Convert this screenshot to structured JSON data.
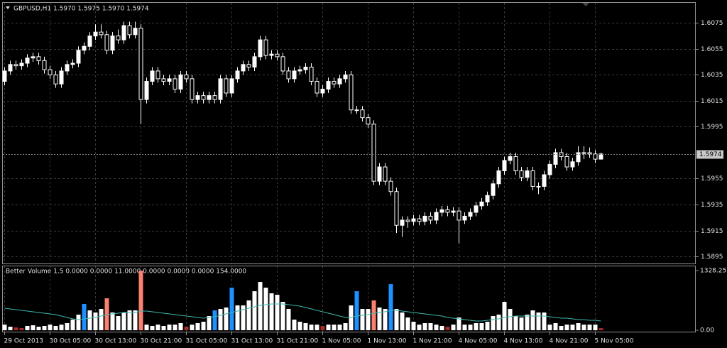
{
  "chart_data": [
    {
      "type": "candlestick",
      "title": "GBPUSD,H1  1.5970 1.5975 1.5970 1.5974",
      "ylim": [
        1.5889,
        1.609
      ],
      "yticks": [
        1.6075,
        1.6055,
        1.6035,
        1.6015,
        1.5995,
        1.5955,
        1.5935,
        1.5915,
        1.5895
      ],
      "grid": true,
      "current_price": 1.5974,
      "up_color": "#ffffff",
      "down_color": "#000000",
      "wick_color": "#ffffff",
      "ohlc": [
        [
          1.603,
          1.6041,
          1.6027,
          1.6038
        ],
        [
          1.6038,
          1.6046,
          1.6035,
          1.6043
        ],
        [
          1.6043,
          1.6046,
          1.6039,
          1.6042
        ],
        [
          1.6042,
          1.6047,
          1.6039,
          1.6044
        ],
        [
          1.6044,
          1.6051,
          1.6041,
          1.6048
        ],
        [
          1.6048,
          1.6052,
          1.6045,
          1.6049
        ],
        [
          1.6049,
          1.6052,
          1.6043,
          1.6046
        ],
        [
          1.6046,
          1.6049,
          1.6036,
          1.6039
        ],
        [
          1.6039,
          1.6042,
          1.6032,
          1.6035
        ],
        [
          1.6035,
          1.6038,
          1.6025,
          1.6028
        ],
        [
          1.6028,
          1.6041,
          1.6025,
          1.6038
        ],
        [
          1.6038,
          1.6046,
          1.6035,
          1.6043
        ],
        [
          1.6043,
          1.6047,
          1.604,
          1.6044
        ],
        [
          1.6044,
          1.6057,
          1.6041,
          1.6054
        ],
        [
          1.6054,
          1.606,
          1.6051,
          1.6057
        ],
        [
          1.6057,
          1.6068,
          1.6054,
          1.6065
        ],
        [
          1.6065,
          1.6074,
          1.6062,
          1.6068
        ],
        [
          1.6068,
          1.6074,
          1.6063,
          1.6066
        ],
        [
          1.6066,
          1.6069,
          1.6051,
          1.6054
        ],
        [
          1.6054,
          1.6068,
          1.6051,
          1.6065
        ],
        [
          1.6065,
          1.607,
          1.6059,
          1.6062
        ],
        [
          1.6062,
          1.6076,
          1.6059,
          1.6073
        ],
        [
          1.6073,
          1.6076,
          1.6063,
          1.6066
        ],
        [
          1.6066,
          1.6076,
          1.6063,
          1.6071
        ],
        [
          1.6071,
          1.6074,
          1.5997,
          1.6016
        ],
        [
          1.6016,
          1.6033,
          1.6013,
          1.603
        ],
        [
          1.603,
          1.6041,
          1.6027,
          1.6038
        ],
        [
          1.6038,
          1.6041,
          1.6029,
          1.6032
        ],
        [
          1.6032,
          1.6035,
          1.6027,
          1.603
        ],
        [
          1.603,
          1.6035,
          1.6027,
          1.6032
        ],
        [
          1.6032,
          1.6035,
          1.6021,
          1.6024
        ],
        [
          1.6024,
          1.6038,
          1.6021,
          1.6035
        ],
        [
          1.6035,
          1.6038,
          1.6029,
          1.6032
        ],
        [
          1.6032,
          1.6035,
          1.6013,
          1.6016
        ],
        [
          1.6016,
          1.6022,
          1.6013,
          1.6019
        ],
        [
          1.6019,
          1.6022,
          1.6013,
          1.6016
        ],
        [
          1.6016,
          1.6022,
          1.6013,
          1.6019
        ],
        [
          1.6019,
          1.6022,
          1.6013,
          1.6016
        ],
        [
          1.6016,
          1.6035,
          1.6013,
          1.6032
        ],
        [
          1.6032,
          1.6035,
          1.6018,
          1.6021
        ],
        [
          1.6021,
          1.6035,
          1.6018,
          1.6032
        ],
        [
          1.6032,
          1.6041,
          1.6029,
          1.6038
        ],
        [
          1.6038,
          1.6046,
          1.6035,
          1.6043
        ],
        [
          1.6043,
          1.6046,
          1.6038,
          1.6041
        ],
        [
          1.6041,
          1.6052,
          1.6038,
          1.6049
        ],
        [
          1.6049,
          1.6065,
          1.6046,
          1.6062
        ],
        [
          1.6062,
          1.6065,
          1.6047,
          1.605
        ],
        [
          1.605,
          1.6054,
          1.6047,
          1.6051
        ],
        [
          1.6051,
          1.6054,
          1.6046,
          1.6049
        ],
        [
          1.6049,
          1.6052,
          1.6035,
          1.6038
        ],
        [
          1.6038,
          1.6041,
          1.6029,
          1.6032
        ],
        [
          1.6032,
          1.6041,
          1.6029,
          1.6038
        ],
        [
          1.6038,
          1.6042,
          1.6035,
          1.6039
        ],
        [
          1.6039,
          1.6044,
          1.6036,
          1.6041
        ],
        [
          1.6041,
          1.6044,
          1.6027,
          1.603
        ],
        [
          1.603,
          1.6033,
          1.6018,
          1.6021
        ],
        [
          1.6021,
          1.6027,
          1.6018,
          1.6024
        ],
        [
          1.6024,
          1.6033,
          1.6021,
          1.603
        ],
        [
          1.603,
          1.6033,
          1.6025,
          1.6028
        ],
        [
          1.6028,
          1.6035,
          1.6025,
          1.6032
        ],
        [
          1.6032,
          1.6038,
          1.6029,
          1.6035
        ],
        [
          1.6035,
          1.6038,
          1.6005,
          1.6008
        ],
        [
          1.6008,
          1.6011,
          1.6005,
          1.6008
        ],
        [
          1.6008,
          1.6011,
          1.5999,
          1.6002
        ],
        [
          1.6002,
          1.6005,
          1.5994,
          1.5997
        ],
        [
          1.5997,
          1.6,
          1.595,
          1.5953
        ],
        [
          1.5953,
          1.5967,
          1.595,
          1.5964
        ],
        [
          1.5964,
          1.5967,
          1.595,
          1.5953
        ],
        [
          1.5953,
          1.5956,
          1.5942,
          1.5945
        ],
        [
          1.5945,
          1.5948,
          1.5913,
          1.5919
        ],
        [
          1.5919,
          1.5926,
          1.591,
          1.5923
        ],
        [
          1.5923,
          1.5926,
          1.5917,
          1.5922
        ],
        [
          1.5922,
          1.5927,
          1.5919,
          1.5924
        ],
        [
          1.5924,
          1.5927,
          1.5919,
          1.5922
        ],
        [
          1.5922,
          1.5929,
          1.5919,
          1.5926
        ],
        [
          1.5926,
          1.5929,
          1.592,
          1.5923
        ],
        [
          1.5923,
          1.5932,
          1.592,
          1.5929
        ],
        [
          1.5929,
          1.5934,
          1.5926,
          1.5931
        ],
        [
          1.5931,
          1.5934,
          1.5926,
          1.5929
        ],
        [
          1.5929,
          1.5933,
          1.5926,
          1.593
        ],
        [
          1.593,
          1.5933,
          1.5905,
          1.5923
        ],
        [
          1.5923,
          1.5929,
          1.592,
          1.5926
        ],
        [
          1.5926,
          1.5932,
          1.5923,
          1.5929
        ],
        [
          1.5929,
          1.5937,
          1.5926,
          1.5934
        ],
        [
          1.5934,
          1.594,
          1.5931,
          1.5937
        ],
        [
          1.5937,
          1.5945,
          1.5934,
          1.5942
        ],
        [
          1.5942,
          1.5954,
          1.5939,
          1.5951
        ],
        [
          1.5951,
          1.5964,
          1.5948,
          1.5961
        ],
        [
          1.5961,
          1.5972,
          1.5958,
          1.5969
        ],
        [
          1.5969,
          1.5975,
          1.5966,
          1.5972
        ],
        [
          1.5972,
          1.5975,
          1.5958,
          1.5961
        ],
        [
          1.5961,
          1.5964,
          1.5953,
          1.5956
        ],
        [
          1.5956,
          1.5964,
          1.5953,
          1.5961
        ],
        [
          1.5961,
          1.5964,
          1.5946,
          1.5949
        ],
        [
          1.5949,
          1.5952,
          1.5943,
          1.5949
        ],
        [
          1.5949,
          1.5961,
          1.5946,
          1.5958
        ],
        [
          1.5958,
          1.5969,
          1.5955,
          1.5966
        ],
        [
          1.5966,
          1.5978,
          1.5963,
          1.5975
        ],
        [
          1.5975,
          1.5978,
          1.5969,
          1.5972
        ],
        [
          1.5972,
          1.5975,
          1.5961,
          1.5964
        ],
        [
          1.5964,
          1.5971,
          1.5961,
          1.5968
        ],
        [
          1.5968,
          1.598,
          1.5965,
          1.5975
        ],
        [
          1.5975,
          1.598,
          1.597,
          1.5975
        ],
        [
          1.5975,
          1.5979,
          1.5971,
          1.5974
        ],
        [
          1.5974,
          1.5977,
          1.5967,
          1.597
        ],
        [
          1.597,
          1.5975,
          1.597,
          1.5974
        ]
      ]
    },
    {
      "type": "bar",
      "title": "Better Volume 1.5 0.0000 0.0000 11.0000 0.0000 0.0000 0.0000 154.0000",
      "ylim": [
        0,
        1328.25
      ],
      "yticks": [
        1328.25,
        {
          "value": 0,
          "label": "0.00"
        }
      ],
      "xticks": [
        {
          "value": 0,
          "label": "29 Oct 2013"
        },
        {
          "value": 8,
          "label": "30 Oct 05:00"
        },
        {
          "value": 16,
          "label": "30 Oct 13:00"
        },
        {
          "value": 24,
          "label": "30 Oct 21:00"
        },
        {
          "value": 32,
          "label": "31 Oct 05:00"
        },
        {
          "value": 40,
          "label": "31 Oct 13:00"
        },
        {
          "value": 48,
          "label": "31 Oct 21:00"
        },
        {
          "value": 56,
          "label": "1 Nov 05:00"
        },
        {
          "value": 64,
          "label": "1 Nov 13:00"
        },
        {
          "value": 72,
          "label": "1 Nov 21:00"
        },
        {
          "value": 80,
          "label": "4 Nov 05:00"
        },
        {
          "value": 88,
          "label": "4 Nov 13:00"
        },
        {
          "value": 96,
          "label": "4 Nov 21:00"
        },
        {
          "value": 104,
          "label": "5 Nov 05:00"
        }
      ],
      "values": [
        126,
        79,
        63,
        47,
        95,
        111,
        79,
        95,
        126,
        95,
        126,
        158,
        237,
        348,
        585,
        442,
        395,
        474,
        711,
        395,
        316,
        395,
        442,
        442,
        1327,
        126,
        95,
        126,
        95,
        126,
        126,
        158,
        79,
        126,
        158,
        190,
        316,
        442,
        474,
        506,
        948,
        553,
        553,
        664,
        869,
        1074,
        948,
        822,
        790,
        632,
        474,
        237,
        190,
        158,
        126,
        126,
        95,
        126,
        126,
        126,
        158,
        553,
        869,
        474,
        474,
        664,
        506,
        474,
        1027,
        474,
        395,
        284,
        190,
        126,
        158,
        158,
        126,
        95,
        79,
        126,
        284,
        126,
        126,
        158,
        158,
        190,
        316,
        348,
        632,
        474,
        316,
        284,
        348,
        442,
        395,
        395,
        126,
        158,
        95,
        126,
        126,
        158,
        126,
        126,
        126,
        47
      ],
      "colors": [
        "#ffffff",
        "#ffffff",
        "#a52a2a",
        "#a52a2a",
        "#ffffff",
        "#ffffff",
        "#ffffff",
        "#ffffff",
        "#ffffff",
        "#ffffff",
        "#ffffff",
        "#ffffff",
        "#ffffff",
        "#ffffff",
        "#1e90ff",
        "#ffffff",
        "#ffffff",
        "#ffffff",
        "#fa8072",
        "#ffffff",
        "#ffffff",
        "#ffffff",
        "#ffffff",
        "#ffffff",
        "#fa8072",
        "#ffffff",
        "#ffffff",
        "#ffffff",
        "#ffffff",
        "#ffffff",
        "#ffffff",
        "#ffffff",
        "#a52a2a",
        "#ffffff",
        "#ffffff",
        "#ffffff",
        "#ffffff",
        "#1e90ff",
        "#ffffff",
        "#ffffff",
        "#1e90ff",
        "#ffffff",
        "#ffffff",
        "#ffffff",
        "#ffffff",
        "#ffffff",
        "#ffffff",
        "#ffffff",
        "#ffffff",
        "#ffffff",
        "#ffffff",
        "#ffffff",
        "#ffffff",
        "#ffffff",
        "#ffffff",
        "#ffffff",
        "#a52a2a",
        "#ffffff",
        "#ffffff",
        "#ffffff",
        "#ffffff",
        "#ffffff",
        "#1e90ff",
        "#ffffff",
        "#ffffff",
        "#fa8072",
        "#ffffff",
        "#ffffff",
        "#1e90ff",
        "#ffffff",
        "#ffffff",
        "#ffffff",
        "#ffffff",
        "#ffffff",
        "#ffffff",
        "#ffffff",
        "#ffffff",
        "#ffffff",
        "#a52a2a",
        "#ffffff",
        "#ffffff",
        "#ffffff",
        "#ffffff",
        "#ffffff",
        "#ffffff",
        "#ffffff",
        "#ffffff",
        "#ffffff",
        "#ffffff",
        "#ffffff",
        "#ffffff",
        "#ffffff",
        "#ffffff",
        "#ffffff",
        "#ffffff",
        "#ffffff",
        "#ffffff",
        "#ffffff",
        "#ffffff",
        "#ffffff",
        "#ffffff",
        "#ffffff",
        "#ffffff",
        "#ffffff",
        "#ffffff",
        "#a52a2a"
      ],
      "average": {
        "color": "#3cb8b0",
        "values": [
          490,
          474,
          458,
          442,
          427,
          411,
          395,
          379,
          363,
          348,
          316,
          284,
          253,
          237,
          253,
          269,
          284,
          316,
          348,
          363,
          379,
          395,
          395,
          395,
          427,
          427,
          411,
          395,
          379,
          363,
          348,
          332,
          316,
          300,
          284,
          269,
          284,
          300,
          332,
          363,
          395,
          427,
          458,
          490,
          521,
          553,
          569,
          585,
          585,
          585,
          569,
          553,
          537,
          506,
          474,
          442,
          411,
          379,
          348,
          316,
          284,
          284,
          316,
          332,
          348,
          379,
          395,
          411,
          442,
          442,
          427,
          411,
          395,
          379,
          363,
          348,
          332,
          316,
          284,
          269,
          253,
          237,
          221,
          205,
          205,
          221,
          237,
          253,
          284,
          300,
          316,
          316,
          316,
          316,
          316,
          316,
          300,
          284,
          269,
          269,
          253,
          237,
          237,
          221,
          221,
          205
        ]
      }
    }
  ]
}
